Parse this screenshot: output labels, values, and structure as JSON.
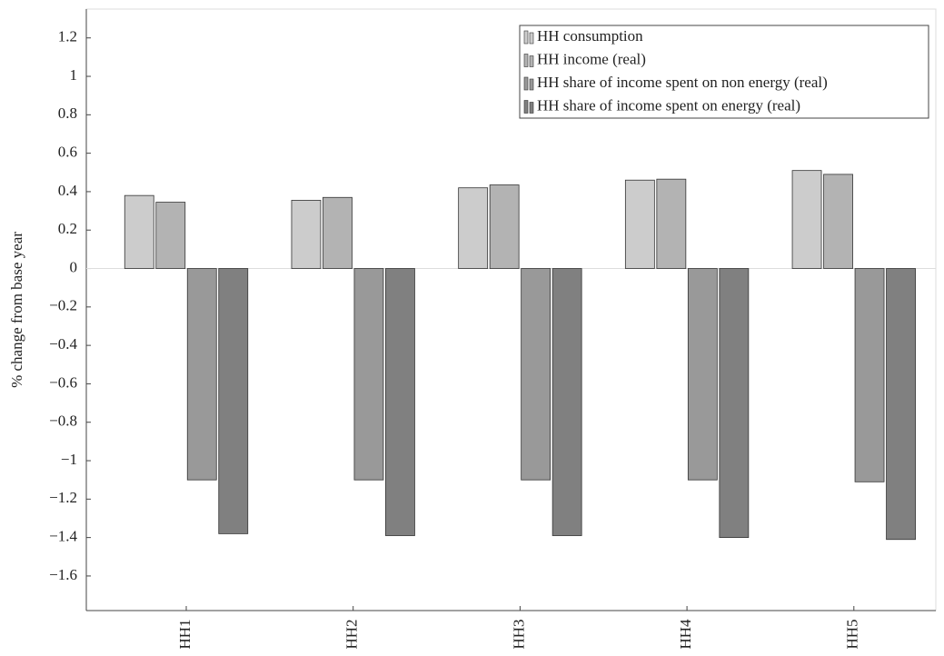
{
  "chart_data": {
    "type": "bar",
    "ylabel": "% change from base year",
    "categories": [
      "HH1",
      "HH2",
      "HH3",
      "HH4",
      "HH5"
    ],
    "series": [
      {
        "name": "HH consumption",
        "color": "#cccccc",
        "values": [
          0.38,
          0.355,
          0.42,
          0.46,
          0.51
        ]
      },
      {
        "name": "HH income (real)",
        "color": "#b3b3b3",
        "values": [
          0.345,
          0.37,
          0.435,
          0.465,
          0.49
        ]
      },
      {
        "name": "HH share of income spent on non energy (real)",
        "color": "#999999",
        "values": [
          -1.1,
          -1.1,
          -1.1,
          -1.1,
          -1.11
        ]
      },
      {
        "name": "HH share of income spent on energy (real)",
        "color": "#808080",
        "values": [
          -1.38,
          -1.39,
          -1.39,
          -1.4,
          -1.41
        ]
      }
    ],
    "ylim": [
      -1.78,
      1.35
    ],
    "yticks": [
      {
        "value": -1.6,
        "label": "−1.6"
      },
      {
        "value": -1.4,
        "label": "−1.4"
      },
      {
        "value": -1.2,
        "label": "−1.2"
      },
      {
        "value": -1,
        "label": "−1"
      },
      {
        "value": -0.8,
        "label": "−0.8"
      },
      {
        "value": -0.6,
        "label": "−0.6"
      },
      {
        "value": -0.4,
        "label": "−0.4"
      },
      {
        "value": -0.2,
        "label": "−0.2"
      },
      0,
      0.2,
      0.4,
      0.6,
      0.8,
      1,
      1.2
    ],
    "legend": "top-right"
  }
}
